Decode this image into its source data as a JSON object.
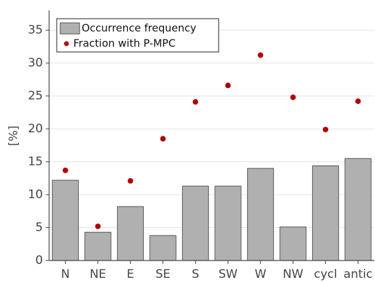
{
  "chart_data": {
    "type": "bar",
    "ylabel": "[%]",
    "categories": [
      "N",
      "NE",
      "E",
      "SE",
      "S",
      "SW",
      "W",
      "NW",
      "cycl",
      "antic"
    ],
    "series": [
      {
        "name": "Occurrence frequency",
        "type": "bar",
        "color": "#b0b0b0",
        "values": [
          12.2,
          4.3,
          8.2,
          3.8,
          11.3,
          11.3,
          14.0,
          5.1,
          14.4,
          15.5
        ]
      },
      {
        "name": "Fraction with P-MPC",
        "type": "scatter",
        "color": "#b00000",
        "values": [
          13.7,
          5.2,
          12.1,
          18.5,
          24.1,
          26.6,
          31.2,
          24.8,
          19.9,
          24.2
        ]
      }
    ],
    "ylim": [
      0,
      38
    ],
    "yticks": [
      0,
      5,
      10,
      15,
      20,
      25,
      30,
      35
    ],
    "grid": true,
    "legend": "upper left"
  }
}
